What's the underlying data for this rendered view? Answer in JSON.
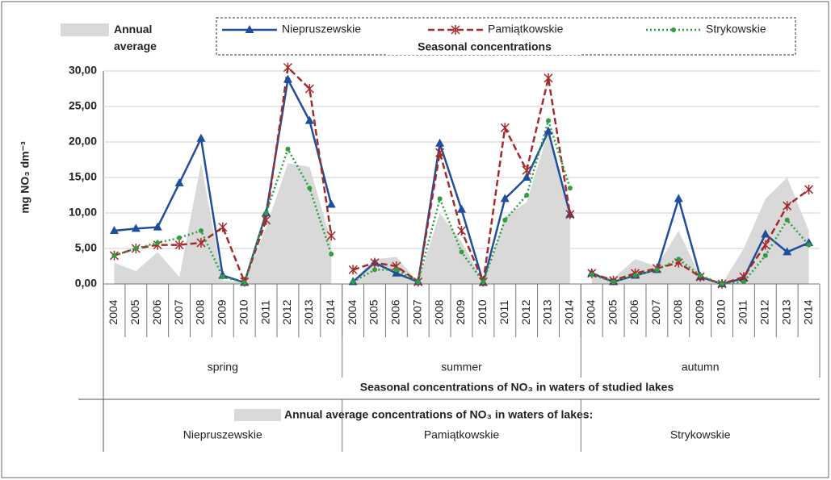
{
  "chart_data": {
    "type": "line",
    "title": "Seasonal concentrations of NO₃ in waters of studied lakes",
    "legend_title": "Seasonal concentrations",
    "y_label": "mg NO₃ dm⁻³",
    "categories": [
      "2004",
      "2005",
      "2006",
      "2007",
      "2008",
      "2009",
      "2010",
      "2011",
      "2012",
      "2013",
      "2014",
      "2004",
      "2005",
      "2006",
      "2007",
      "2008",
      "2009",
      "2010",
      "2011",
      "2012",
      "2013",
      "2014",
      "2004",
      "2005",
      "2006",
      "2007",
      "2008",
      "2009",
      "2010",
      "2011",
      "2012",
      "2013",
      "2014"
    ],
    "category_groups": [
      "spring",
      "summer",
      "autumn"
    ],
    "series": [
      {
        "name": "Niepruszewskie",
        "color": "#1f4e9c",
        "line_style": "solid",
        "marker": "triangle",
        "values": [
          7.5,
          7.8,
          8.0,
          14.2,
          20.5,
          1.2,
          0.2,
          10.0,
          28.8,
          23.0,
          11.2,
          0.3,
          3.0,
          1.5,
          0.3,
          19.8,
          10.5,
          0.2,
          12.0,
          15.0,
          21.5,
          9.8,
          1.5,
          0.3,
          1.2,
          2.0,
          12.0,
          1.0,
          0.0,
          0.8,
          7.0,
          4.5,
          5.8
        ]
      },
      {
        "name": "Pamiątkowskie",
        "color": "#a52a2a",
        "line_style": "dashed",
        "marker": "asterisk",
        "values": [
          4.0,
          5.0,
          5.5,
          5.5,
          5.8,
          8.0,
          0.3,
          9.0,
          30.5,
          27.5,
          6.8,
          2.0,
          3.0,
          2.5,
          0.3,
          18.5,
          7.5,
          0.3,
          22.0,
          16.0,
          29.0,
          9.8,
          1.5,
          0.5,
          1.5,
          2.2,
          3.0,
          1.0,
          0.0,
          1.0,
          5.5,
          11.0,
          13.3
        ]
      },
      {
        "name": "Strykowskie",
        "color": "#2e9e3e",
        "line_style": "dotted",
        "marker": "circle",
        "values": [
          4.0,
          5.0,
          5.8,
          6.5,
          7.5,
          1.0,
          0.2,
          10.0,
          19.0,
          13.5,
          4.2,
          0.3,
          2.0,
          2.0,
          0.3,
          12.0,
          4.5,
          0.3,
          9.0,
          12.5,
          23.0,
          13.5,
          1.3,
          0.3,
          1.2,
          2.0,
          3.5,
          1.2,
          0.0,
          0.3,
          4.0,
          9.0,
          5.5
        ]
      }
    ],
    "area": {
      "name": "Annual average",
      "color": "#d9d9d9",
      "values": [
        3.0,
        1.8,
        4.5,
        1.0,
        17.0,
        0.5,
        0.2,
        8.0,
        17.0,
        16.5,
        6.0,
        0.5,
        3.5,
        3.8,
        0.3,
        10.0,
        6.0,
        0.3,
        9.5,
        11.5,
        21.5,
        9.5,
        1.5,
        0.8,
        3.5,
        2.5,
        7.5,
        1.0,
        0.0,
        5.0,
        12.0,
        15.0,
        7.5
      ]
    },
    "area_title": "Annual average concentrations of NO₃ in waters of lakes:",
    "area_groups": [
      "Niepruszewskie",
      "Pamiątkowskie",
      "Strykowskie"
    ],
    "ylim": [
      0,
      30
    ],
    "yticks": [
      {
        "value": 0,
        "label": "0,00"
      },
      {
        "value": 5,
        "label": "5,00"
      },
      {
        "value": 10,
        "label": "10,00"
      },
      {
        "value": 15,
        "label": "15,00"
      },
      {
        "value": 20,
        "label": "20,00"
      },
      {
        "value": 25,
        "label": "25,00"
      },
      {
        "value": 30,
        "label": "30,00"
      }
    ],
    "grid": true
  }
}
